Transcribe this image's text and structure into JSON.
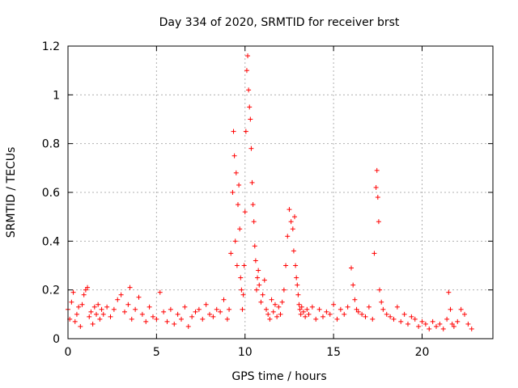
{
  "chart_data": {
    "type": "scatter",
    "title": "Day 334 of 2020, SRMTID for receiver brst",
    "xlabel": "GPS time / hours",
    "ylabel": "SRMTID / TECUs",
    "xlim": [
      0,
      24
    ],
    "ylim": [
      0,
      1.2
    ],
    "xticks": [
      0,
      5,
      10,
      15,
      20
    ],
    "xtick_labels": [
      "0",
      "5",
      "10",
      "15",
      "20"
    ],
    "yticks": [
      0,
      0.2,
      0.4,
      0.6,
      0.8,
      1.0,
      1.2
    ],
    "ytick_labels": [
      "0",
      "0.2",
      "0.4",
      "0.6",
      "0.8",
      "1",
      "1.2"
    ],
    "grid": true,
    "marker": "+",
    "color": "#ff0000",
    "series": [
      {
        "name": "SRMTID",
        "x": [
          0.0,
          0.1,
          0.2,
          0.3,
          0.4,
          0.5,
          0.6,
          0.7,
          0.8,
          0.9,
          1.0,
          1.1,
          1.2,
          1.3,
          1.4,
          1.5,
          1.6,
          1.7,
          1.8,
          1.9,
          2.0,
          2.2,
          2.4,
          2.6,
          2.8,
          3.0,
          3.2,
          3.4,
          3.5,
          3.6,
          3.8,
          4.0,
          4.2,
          4.4,
          4.6,
          4.8,
          5.0,
          5.2,
          5.4,
          5.6,
          5.8,
          6.0,
          6.2,
          6.4,
          6.6,
          6.8,
          7.0,
          7.2,
          7.4,
          7.6,
          7.8,
          8.0,
          8.2,
          8.4,
          8.6,
          8.8,
          9.0,
          9.1,
          9.2,
          9.3,
          9.35,
          9.4,
          9.45,
          9.5,
          9.55,
          9.6,
          9.65,
          9.7,
          9.75,
          9.8,
          9.85,
          9.9,
          9.95,
          10.0,
          10.05,
          10.1,
          10.15,
          10.2,
          10.25,
          10.3,
          10.35,
          10.4,
          10.45,
          10.5,
          10.55,
          10.6,
          10.65,
          10.7,
          10.75,
          10.8,
          10.9,
          11.0,
          11.1,
          11.2,
          11.3,
          11.4,
          11.5,
          11.6,
          11.7,
          11.8,
          11.9,
          12.0,
          12.1,
          12.2,
          12.3,
          12.4,
          12.5,
          12.6,
          12.7,
          12.75,
          12.8,
          12.85,
          12.9,
          12.95,
          13.0,
          13.05,
          13.1,
          13.15,
          13.2,
          13.3,
          13.4,
          13.5,
          13.6,
          13.8,
          14.0,
          14.2,
          14.4,
          14.6,
          14.8,
          15.0,
          15.2,
          15.4,
          15.6,
          15.8,
          16.0,
          16.1,
          16.2,
          16.3,
          16.4,
          16.6,
          16.8,
          17.0,
          17.2,
          17.3,
          17.4,
          17.45,
          17.5,
          17.55,
          17.6,
          17.7,
          17.8,
          18.0,
          18.2,
          18.4,
          18.6,
          18.8,
          19.0,
          19.2,
          19.4,
          19.6,
          19.8,
          20.0,
          20.2,
          20.4,
          20.6,
          20.8,
          21.0,
          21.2,
          21.4,
          21.5,
          21.6,
          21.7,
          21.8,
          22.0,
          22.2,
          22.4,
          22.6,
          22.8
        ],
        "y": [
          0.12,
          0.08,
          0.15,
          0.19,
          0.07,
          0.1,
          0.13,
          0.05,
          0.14,
          0.18,
          0.2,
          0.21,
          0.09,
          0.11,
          0.06,
          0.13,
          0.1,
          0.14,
          0.08,
          0.12,
          0.1,
          0.13,
          0.09,
          0.12,
          0.16,
          0.18,
          0.11,
          0.14,
          0.21,
          0.08,
          0.12,
          0.17,
          0.1,
          0.07,
          0.13,
          0.09,
          0.08,
          0.19,
          0.11,
          0.07,
          0.12,
          0.06,
          0.1,
          0.08,
          0.13,
          0.05,
          0.09,
          0.11,
          0.12,
          0.08,
          0.14,
          0.1,
          0.09,
          0.12,
          0.11,
          0.16,
          0.08,
          0.12,
          0.35,
          0.6,
          0.85,
          0.75,
          0.4,
          0.68,
          0.3,
          0.55,
          0.63,
          0.45,
          0.25,
          0.2,
          0.12,
          0.18,
          0.3,
          0.52,
          0.85,
          1.1,
          1.16,
          1.02,
          0.95,
          0.9,
          0.78,
          0.64,
          0.55,
          0.48,
          0.38,
          0.32,
          0.2,
          0.25,
          0.28,
          0.22,
          0.15,
          0.18,
          0.24,
          0.12,
          0.1,
          0.08,
          0.16,
          0.11,
          0.14,
          0.09,
          0.13,
          0.1,
          0.15,
          0.2,
          0.3,
          0.42,
          0.53,
          0.48,
          0.45,
          0.36,
          0.5,
          0.3,
          0.25,
          0.22,
          0.18,
          0.14,
          0.12,
          0.1,
          0.13,
          0.11,
          0.09,
          0.12,
          0.1,
          0.13,
          0.08,
          0.12,
          0.09,
          0.11,
          0.1,
          0.14,
          0.08,
          0.12,
          0.1,
          0.13,
          0.29,
          0.22,
          0.16,
          0.12,
          0.11,
          0.1,
          0.09,
          0.13,
          0.08,
          0.35,
          0.62,
          0.69,
          0.58,
          0.48,
          0.2,
          0.15,
          0.12,
          0.1,
          0.09,
          0.08,
          0.13,
          0.07,
          0.1,
          0.06,
          0.09,
          0.08,
          0.05,
          0.07,
          0.06,
          0.04,
          0.07,
          0.05,
          0.06,
          0.04,
          0.08,
          0.19,
          0.12,
          0.06,
          0.05,
          0.07,
          0.12,
          0.1,
          0.06,
          0.04
        ]
      }
    ]
  }
}
